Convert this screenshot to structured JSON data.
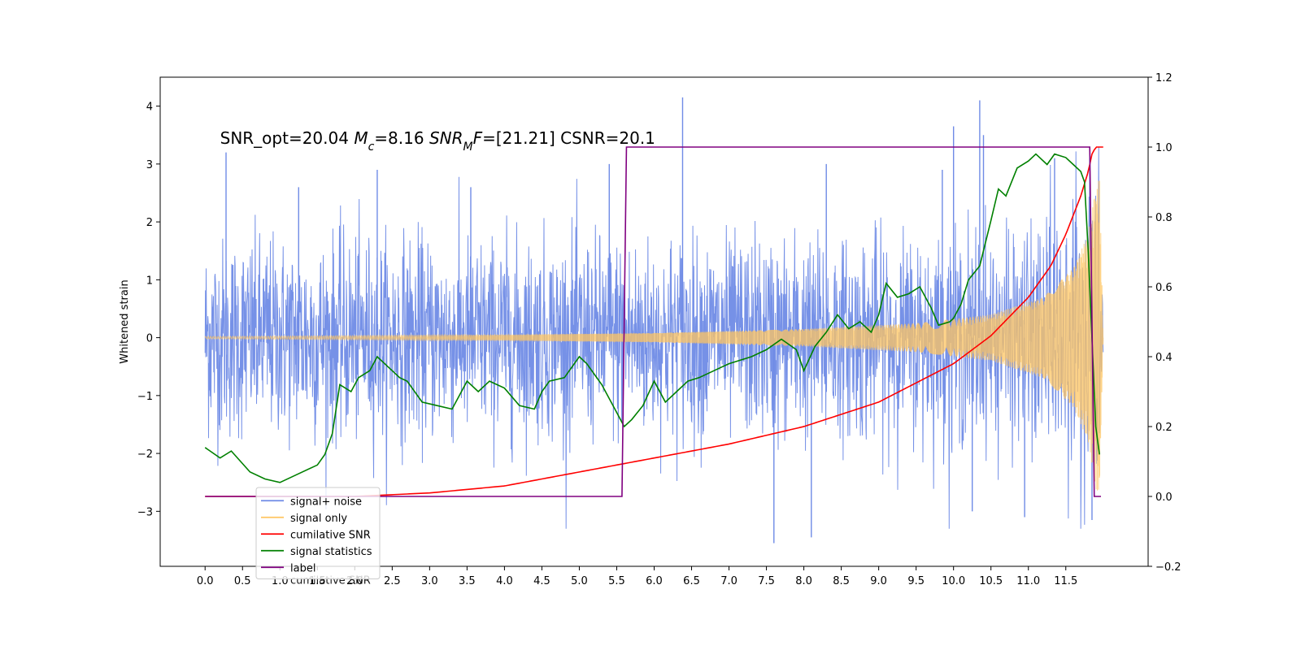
{
  "chart_data": {
    "type": "line",
    "title": "",
    "xlabel": "",
    "ylabel": "Whitened strain",
    "xlim": [
      -0.6,
      12.6
    ],
    "ylim": [
      -3.95,
      4.5
    ],
    "y2lim": [
      -0.2,
      1.2
    ],
    "grid": false,
    "legend_placement": "lower-left",
    "x_ticks": [
      0.0,
      0.5,
      1.0,
      1.5,
      2.0,
      2.5,
      3.0,
      3.5,
      4.0,
      4.5,
      5.0,
      5.5,
      6.0,
      6.5,
      7.0,
      7.5,
      8.0,
      8.5,
      9.0,
      9.5,
      10.0,
      10.5,
      11.0,
      11.5
    ],
    "x_tick_labels": [
      "0.0",
      "0.5",
      "1.0",
      "1.5",
      "2.0",
      "2.5",
      "3.0",
      "3.5",
      "4.0",
      "4.5",
      "5.0",
      "5.5",
      "6.0",
      "6.5",
      "7.0",
      "7.5",
      "8.0",
      "8.5",
      "9.0",
      "9.5",
      "10.0",
      "10.5",
      "11.0",
      "11.5"
    ],
    "y_ticks": [
      -3,
      -2,
      -1,
      0,
      1,
      2,
      3,
      4
    ],
    "y_tick_labels": [
      "−3",
      "−2",
      "−1",
      "0",
      "1",
      "2",
      "3",
      "4"
    ],
    "y2_ticks": [
      -0.2,
      0.0,
      0.2,
      0.4,
      0.6,
      0.8,
      1.0,
      1.2
    ],
    "y2_tick_labels": [
      "−0.2",
      "0.0",
      "0.2",
      "0.4",
      "0.6",
      "0.8",
      "1.0",
      "1.2"
    ],
    "annotation": {
      "x": 0.2,
      "y": 3.35,
      "parts": [
        {
          "text": "SNR_opt=20.04 ",
          "italic": false
        },
        {
          "text": "M",
          "italic": true
        },
        {
          "text": "c",
          "italic": true,
          "sub": true
        },
        {
          "text": "=8.16    ",
          "italic": false
        },
        {
          "text": "SNR",
          "italic": true
        },
        {
          "text": "M",
          "italic": true,
          "sub": true
        },
        {
          "text": "F",
          "italic": true
        },
        {
          "text": "=[21.21] CSNR=20.1",
          "italic": false
        }
      ]
    },
    "legend": {
      "entries": [
        {
          "label": "signal+ noise",
          "color": "#6f8be6"
        },
        {
          "label": "signal only",
          "color": "#ffc561"
        },
        {
          "label": "cumilative SNR",
          "color": "#ff0000"
        },
        {
          "label": "signal statistics",
          "color": "#008000"
        },
        {
          "label": "label",
          "color": "#800080"
        }
      ],
      "ghost_text": "cumilative SNR"
    },
    "series": [
      {
        "name": "signal+ noise",
        "axis": "left",
        "color": "#6f8be6",
        "description_free": true,
        "x_range": [
          0.0,
          12.0
        ],
        "noise_std": 0.85,
        "signal_envelope": {
          "x": [
            0.0,
            4.0,
            6.0,
            8.0,
            9.5,
            10.5,
            11.2,
            11.6,
            11.8,
            11.9,
            12.0
          ],
          "y": [
            0.02,
            0.05,
            0.08,
            0.15,
            0.25,
            0.4,
            0.7,
            1.2,
            1.8,
            2.5,
            0.0
          ]
        },
        "spikes": [
          [
            0.28,
            3.2
          ],
          [
            1.25,
            2.6
          ],
          [
            2.3,
            2.9
          ],
          [
            3.55,
            2.6
          ],
          [
            5.4,
            3.0
          ],
          [
            6.38,
            4.15
          ],
          [
            7.6,
            -3.55
          ],
          [
            8.1,
            -3.45
          ],
          [
            8.3,
            3.0
          ],
          [
            9.85,
            2.9
          ],
          [
            10.0,
            3.65
          ],
          [
            10.35,
            4.1
          ],
          [
            10.4,
            3.5
          ],
          [
            10.25,
            -3.0
          ],
          [
            10.95,
            -3.1
          ],
          [
            11.35,
            3.1
          ],
          [
            11.82,
            3.1
          ],
          [
            11.85,
            -3.15
          ]
        ]
      },
      {
        "name": "signal only",
        "axis": "left",
        "color": "#ffc561",
        "x_range": [
          0.0,
          12.0
        ],
        "envelope": {
          "x": [
            0.0,
            4.0,
            6.0,
            8.0,
            9.5,
            10.5,
            11.2,
            11.6,
            11.8,
            11.9,
            11.95,
            12.0
          ],
          "y": [
            0.02,
            0.05,
            0.08,
            0.15,
            0.25,
            0.4,
            0.7,
            1.2,
            1.8,
            2.6,
            2.8,
            0.0
          ]
        }
      },
      {
        "name": "cumilative SNR",
        "axis": "right",
        "color": "#ff0000",
        "x": [
          0.0,
          2.0,
          3.0,
          4.0,
          5.0,
          6.0,
          7.0,
          8.0,
          9.0,
          10.0,
          10.5,
          11.0,
          11.3,
          11.5,
          11.7,
          11.8,
          11.85,
          11.9,
          12.0
        ],
        "y": [
          0.0,
          0.0,
          0.01,
          0.03,
          0.07,
          0.11,
          0.15,
          0.2,
          0.27,
          0.38,
          0.46,
          0.57,
          0.66,
          0.75,
          0.86,
          0.93,
          0.98,
          1.0,
          1.0
        ]
      },
      {
        "name": "signal statistics",
        "axis": "right",
        "color": "#008000",
        "x": [
          0.0,
          0.2,
          0.35,
          0.6,
          0.8,
          1.0,
          1.2,
          1.5,
          1.6,
          1.7,
          1.8,
          1.95,
          2.05,
          2.2,
          2.3,
          2.45,
          2.6,
          2.7,
          2.9,
          3.1,
          3.3,
          3.5,
          3.65,
          3.8,
          4.0,
          4.2,
          4.4,
          4.5,
          4.6,
          4.8,
          5.0,
          5.1,
          5.3,
          5.5,
          5.6,
          5.7,
          5.85,
          6.0,
          6.15,
          6.3,
          6.45,
          6.6,
          6.8,
          7.0,
          7.3,
          7.5,
          7.7,
          7.9,
          8.0,
          8.15,
          8.3,
          8.45,
          8.6,
          8.75,
          8.9,
          9.0,
          9.1,
          9.25,
          9.4,
          9.55,
          9.7,
          9.8,
          9.95,
          10.0,
          10.1,
          10.2,
          10.35,
          10.5,
          10.6,
          10.7,
          10.85,
          11.0,
          11.1,
          11.25,
          11.35,
          11.5,
          11.6,
          11.7,
          11.75,
          11.8,
          11.9,
          11.95
        ],
        "y": [
          0.14,
          0.11,
          0.13,
          0.07,
          0.05,
          0.04,
          0.06,
          0.09,
          0.12,
          0.18,
          0.32,
          0.3,
          0.34,
          0.36,
          0.4,
          0.37,
          0.34,
          0.33,
          0.27,
          0.26,
          0.25,
          0.33,
          0.3,
          0.33,
          0.31,
          0.26,
          0.25,
          0.3,
          0.33,
          0.34,
          0.4,
          0.38,
          0.32,
          0.24,
          0.2,
          0.22,
          0.26,
          0.33,
          0.27,
          0.3,
          0.33,
          0.34,
          0.36,
          0.38,
          0.4,
          0.42,
          0.45,
          0.42,
          0.36,
          0.43,
          0.47,
          0.52,
          0.48,
          0.5,
          0.47,
          0.52,
          0.61,
          0.57,
          0.58,
          0.6,
          0.54,
          0.49,
          0.5,
          0.51,
          0.55,
          0.62,
          0.66,
          0.79,
          0.88,
          0.86,
          0.94,
          0.96,
          0.98,
          0.95,
          0.98,
          0.97,
          0.95,
          0.93,
          0.9,
          0.7,
          0.2,
          0.12
        ]
      },
      {
        "name": "label",
        "axis": "right",
        "color": "#800080",
        "x": [
          0.0,
          5.57,
          5.63,
          11.82,
          11.88,
          11.97
        ],
        "y": [
          0.0,
          0.0,
          1.0,
          1.0,
          0.0,
          0.0
        ]
      }
    ]
  }
}
